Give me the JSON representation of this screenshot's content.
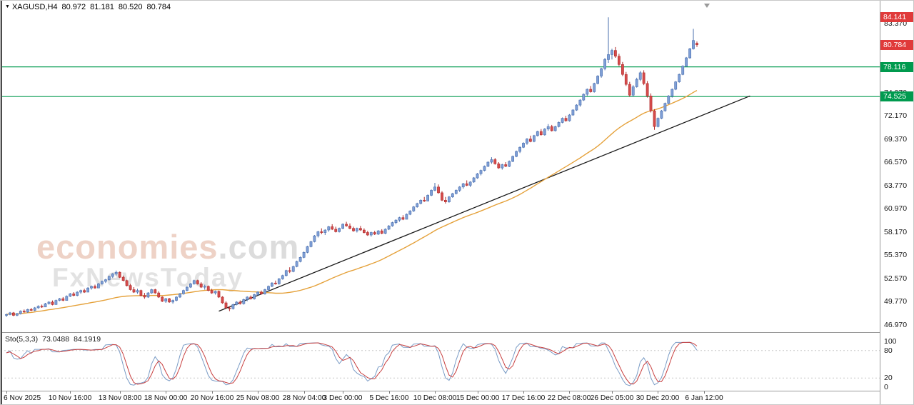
{
  "header": {
    "symbol": "XAGUSD,H4",
    "open": "80.972",
    "high": "81.181",
    "low": "80.520",
    "close": "80.784"
  },
  "watermark": {
    "brand": "economies",
    "brand_suffix": ".com",
    "tagline": "FxNewsToday"
  },
  "colors": {
    "candle_up": "#7f9fd6",
    "candle_up_border": "#4a6fae",
    "candle_down": "#d64c4c",
    "candle_down_border": "#b02c2c",
    "ma_line": "#e5a23c",
    "trendline": "#1a1a1a",
    "level_green": "#009a4e",
    "badge_red": "#e03a3a",
    "badge_green": "#009a4e",
    "stoch_main": "#7a9cc6",
    "stoch_signal": "#c84040",
    "watermark_brand": "#eed2c6",
    "watermark_gray": "#dcdcdc",
    "watermark_tagline": "#e2e2e2"
  },
  "price_axis": {
    "ticks": [
      {
        "label": "83.370",
        "price": 83.37
      },
      {
        "label": "80.570",
        "price": 80.57
      },
      {
        "label": "77.770",
        "price": 77.77
      },
      {
        "label": "74.970",
        "price": 74.97
      },
      {
        "label": "72.170",
        "price": 72.17
      },
      {
        "label": "69.370",
        "price": 69.37
      },
      {
        "label": "66.570",
        "price": 66.57
      },
      {
        "label": "63.770",
        "price": 63.77
      },
      {
        "label": "60.970",
        "price": 60.97
      },
      {
        "label": "58.170",
        "price": 58.17
      },
      {
        "label": "55.370",
        "price": 55.37
      },
      {
        "label": "52.570",
        "price": 52.57
      },
      {
        "label": "49.770",
        "price": 49.77
      },
      {
        "label": "46.970",
        "price": 46.97
      }
    ],
    "badges": [
      {
        "label": "84.141",
        "price": 84.141,
        "kind": "red"
      },
      {
        "label": "80.784",
        "price": 80.784,
        "kind": "red"
      },
      {
        "label": "78.116",
        "price": 78.116,
        "kind": "green"
      },
      {
        "label": "74.525",
        "price": 74.525,
        "kind": "green"
      }
    ]
  },
  "time_axis": {
    "labels": [
      {
        "text": "6 Nov 2025",
        "i": 0
      },
      {
        "text": "10 Nov 16:00",
        "i": 18
      },
      {
        "text": "13 Nov 08:00",
        "i": 32
      },
      {
        "text": "18 Nov 00:00",
        "i": 45
      },
      {
        "text": "20 Nov 16:00",
        "i": 58
      },
      {
        "text": "25 Nov 08:00",
        "i": 71
      },
      {
        "text": "28 Nov 04:00",
        "i": 84
      },
      {
        "text": "3 Dec 00:00",
        "i": 95
      },
      {
        "text": "5 Dec 16:00",
        "i": 108
      },
      {
        "text": "10 Dec 08:00",
        "i": 121
      },
      {
        "text": "15 Dec 00:00",
        "i": 133
      },
      {
        "text": "17 Dec 16:00",
        "i": 146
      },
      {
        "text": "22 Dec 08:00",
        "i": 159
      },
      {
        "text": "26 Dec 05:00",
        "i": 171
      },
      {
        "text": "30 Dec 20:00",
        "i": 184
      },
      {
        "text": "6 Jan 12:00",
        "i": 197
      }
    ]
  },
  "indicator": {
    "name": "Sto(5,3,3)",
    "value1": "73.0488",
    "value2": "84.1919",
    "levels": [
      100,
      80,
      20,
      0
    ],
    "dashed_levels": [
      80,
      20
    ]
  },
  "chart_data": {
    "type": "candlestick",
    "symbol": "XAGUSD",
    "timeframe": "H4",
    "ohlc_header": {
      "open": 80.972,
      "high": 81.181,
      "low": 80.52,
      "close": 80.784
    },
    "y_range": [
      46.67,
      84.55
    ],
    "levels": [
      78.116,
      74.525
    ],
    "trendline": {
      "i1": 60,
      "p1": 48.6,
      "i2": 210,
      "p2": 74.6
    },
    "ma": {
      "period": 45
    },
    "stochastic": {
      "k": 5,
      "smooth": 3,
      "d": 3
    },
    "candles": [
      [
        48.1,
        48.3,
        47.9,
        48.2
      ],
      [
        48.2,
        48.5,
        48.1,
        48.4
      ],
      [
        48.4,
        48.5,
        48.0,
        48.1
      ],
      [
        48.1,
        48.4,
        48.0,
        48.3
      ],
      [
        48.3,
        48.7,
        48.2,
        48.6
      ],
      [
        48.6,
        48.8,
        48.4,
        48.5
      ],
      [
        48.5,
        48.9,
        48.4,
        48.8
      ],
      [
        48.8,
        49.0,
        48.6,
        48.7
      ],
      [
        48.7,
        49.1,
        48.6,
        49.0
      ],
      [
        49.0,
        49.3,
        48.9,
        49.2
      ],
      [
        49.2,
        49.4,
        49.0,
        49.1
      ],
      [
        49.1,
        49.6,
        49.1,
        49.5
      ],
      [
        49.5,
        49.8,
        49.4,
        49.7
      ],
      [
        49.7,
        49.9,
        49.3,
        49.4
      ],
      [
        49.4,
        50.0,
        49.4,
        49.9
      ],
      [
        49.9,
        50.2,
        49.8,
        50.1
      ],
      [
        50.1,
        50.3,
        49.8,
        49.9
      ],
      [
        49.9,
        50.5,
        49.9,
        50.4
      ],
      [
        50.4,
        50.8,
        50.3,
        50.7
      ],
      [
        50.7,
        50.9,
        50.4,
        50.5
      ],
      [
        50.5,
        51.0,
        50.4,
        50.9
      ],
      [
        50.9,
        51.2,
        50.7,
        51.1
      ],
      [
        51.1,
        51.3,
        50.8,
        50.9
      ],
      [
        50.9,
        51.5,
        50.9,
        51.4
      ],
      [
        51.4,
        51.7,
        51.2,
        51.6
      ],
      [
        51.6,
        51.8,
        51.3,
        51.4
      ],
      [
        51.4,
        52.0,
        51.4,
        51.9
      ],
      [
        51.9,
        52.3,
        51.8,
        52.2
      ],
      [
        52.2,
        52.5,
        52.0,
        52.4
      ],
      [
        52.4,
        52.9,
        52.3,
        52.8
      ],
      [
        52.8,
        53.2,
        52.6,
        53.1
      ],
      [
        53.1,
        53.5,
        52.9,
        53.3
      ],
      [
        53.3,
        53.4,
        52.6,
        52.7
      ],
      [
        52.7,
        52.9,
        52.2,
        52.3
      ],
      [
        52.3,
        52.4,
        51.6,
        51.7
      ],
      [
        51.7,
        51.9,
        51.1,
        51.2
      ],
      [
        51.2,
        51.5,
        50.8,
        50.9
      ],
      [
        50.9,
        51.3,
        50.7,
        51.1
      ],
      [
        51.1,
        51.2,
        50.4,
        50.5
      ],
      [
        50.5,
        50.8,
        50.1,
        50.3
      ],
      [
        50.3,
        50.9,
        50.2,
        50.8
      ],
      [
        50.8,
        51.3,
        50.7,
        51.2
      ],
      [
        51.2,
        51.3,
        50.7,
        50.8
      ],
      [
        50.8,
        51.0,
        50.2,
        50.3
      ],
      [
        50.3,
        50.4,
        49.7,
        49.8
      ],
      [
        49.8,
        50.2,
        49.6,
        50.1
      ],
      [
        50.1,
        50.2,
        49.6,
        49.7
      ],
      [
        49.7,
        50.0,
        49.5,
        49.9
      ],
      [
        49.9,
        50.4,
        49.8,
        50.3
      ],
      [
        50.3,
        50.8,
        50.2,
        50.7
      ],
      [
        50.7,
        51.2,
        50.6,
        51.1
      ],
      [
        51.1,
        51.6,
        51.0,
        51.5
      ],
      [
        51.5,
        52.0,
        51.4,
        51.9
      ],
      [
        51.9,
        52.4,
        51.8,
        52.3
      ],
      [
        52.3,
        52.4,
        51.8,
        51.9
      ],
      [
        51.9,
        52.1,
        51.4,
        51.5
      ],
      [
        51.5,
        51.8,
        51.2,
        51.6
      ],
      [
        51.6,
        51.7,
        51.0,
        51.1
      ],
      [
        51.1,
        51.3,
        50.7,
        50.8
      ],
      [
        50.8,
        51.1,
        50.6,
        51.0
      ],
      [
        51.0,
        51.1,
        50.2,
        50.3
      ],
      [
        50.3,
        50.4,
        49.5,
        49.6
      ],
      [
        49.6,
        49.8,
        48.9,
        49.0
      ],
      [
        49.0,
        49.2,
        48.6,
        48.9
      ],
      [
        48.9,
        49.5,
        48.8,
        49.4
      ],
      [
        49.4,
        49.8,
        49.3,
        49.7
      ],
      [
        49.7,
        49.9,
        49.4,
        49.5
      ],
      [
        49.5,
        50.1,
        49.4,
        50.0
      ],
      [
        50.0,
        50.4,
        49.8,
        50.3
      ],
      [
        50.3,
        50.5,
        50.0,
        50.1
      ],
      [
        50.1,
        50.7,
        50.0,
        50.6
      ],
      [
        50.6,
        51.0,
        50.5,
        50.9
      ],
      [
        50.9,
        51.1,
        50.6,
        50.7
      ],
      [
        50.7,
        51.3,
        50.6,
        51.2
      ],
      [
        51.2,
        51.7,
        51.1,
        51.6
      ],
      [
        51.6,
        52.1,
        51.5,
        52.0
      ],
      [
        52.0,
        52.3,
        51.8,
        51.9
      ],
      [
        51.9,
        52.6,
        51.8,
        52.5
      ],
      [
        52.5,
        53.0,
        52.4,
        52.9
      ],
      [
        52.9,
        53.6,
        52.8,
        53.5
      ],
      [
        53.5,
        53.9,
        53.2,
        53.4
      ],
      [
        53.4,
        54.1,
        53.3,
        54.0
      ],
      [
        54.0,
        54.7,
        53.9,
        54.6
      ],
      [
        54.6,
        55.2,
        54.5,
        55.1
      ],
      [
        55.1,
        55.8,
        55.0,
        55.7
      ],
      [
        55.7,
        56.5,
        55.6,
        56.4
      ],
      [
        56.4,
        57.1,
        56.3,
        57.0
      ],
      [
        57.0,
        57.8,
        56.9,
        57.7
      ],
      [
        57.7,
        58.3,
        57.5,
        58.2
      ],
      [
        58.2,
        58.6,
        57.9,
        58.1
      ],
      [
        58.1,
        58.5,
        57.8,
        58.4
      ],
      [
        58.4,
        58.9,
        58.2,
        58.8
      ],
      [
        58.8,
        59.1,
        58.4,
        58.5
      ],
      [
        58.5,
        58.8,
        58.1,
        58.2
      ],
      [
        58.2,
        58.7,
        58.1,
        58.6
      ],
      [
        58.6,
        59.2,
        58.5,
        59.1
      ],
      [
        59.1,
        59.4,
        58.8,
        58.9
      ],
      [
        58.9,
        59.2,
        58.5,
        58.6
      ],
      [
        58.6,
        58.8,
        58.2,
        58.3
      ],
      [
        58.3,
        58.7,
        58.1,
        58.6
      ],
      [
        58.6,
        58.9,
        58.3,
        58.4
      ],
      [
        58.4,
        58.6,
        58.0,
        58.1
      ],
      [
        58.1,
        58.3,
        57.7,
        57.8
      ],
      [
        57.8,
        58.2,
        57.6,
        58.1
      ],
      [
        58.1,
        58.3,
        57.8,
        57.9
      ],
      [
        57.9,
        58.4,
        57.8,
        58.3
      ],
      [
        58.3,
        58.5,
        57.9,
        58.0
      ],
      [
        58.0,
        58.6,
        57.9,
        58.5
      ],
      [
        58.5,
        59.0,
        58.4,
        58.9
      ],
      [
        58.9,
        59.4,
        58.8,
        59.3
      ],
      [
        59.3,
        59.7,
        59.1,
        59.6
      ],
      [
        59.6,
        60.0,
        59.4,
        59.9
      ],
      [
        59.9,
        60.2,
        59.6,
        59.7
      ],
      [
        59.7,
        60.4,
        59.7,
        60.3
      ],
      [
        60.3,
        60.8,
        60.2,
        60.7
      ],
      [
        60.7,
        61.3,
        60.6,
        61.2
      ],
      [
        61.2,
        61.7,
        61.1,
        61.6
      ],
      [
        61.6,
        62.1,
        61.5,
        62.0
      ],
      [
        62.0,
        62.4,
        61.8,
        61.9
      ],
      [
        61.9,
        62.7,
        61.9,
        62.6
      ],
      [
        62.6,
        63.3,
        62.5,
        63.2
      ],
      [
        63.2,
        64.1,
        63.1,
        63.6
      ],
      [
        63.6,
        63.9,
        62.8,
        62.9
      ],
      [
        62.9,
        63.1,
        61.9,
        62.0
      ],
      [
        62.0,
        62.4,
        61.6,
        61.8
      ],
      [
        61.8,
        62.5,
        61.7,
        62.4
      ],
      [
        62.4,
        62.9,
        62.3,
        62.8
      ],
      [
        62.8,
        63.3,
        62.7,
        63.2
      ],
      [
        63.2,
        63.7,
        63.0,
        63.6
      ],
      [
        63.6,
        64.1,
        63.4,
        64.0
      ],
      [
        64.0,
        64.4,
        63.7,
        63.8
      ],
      [
        63.8,
        64.3,
        63.6,
        64.2
      ],
      [
        64.2,
        64.8,
        64.1,
        64.7
      ],
      [
        64.7,
        65.3,
        64.6,
        65.2
      ],
      [
        65.2,
        65.7,
        65.0,
        65.6
      ],
      [
        65.6,
        66.2,
        65.5,
        66.1
      ],
      [
        66.1,
        66.7,
        66.0,
        66.6
      ],
      [
        66.6,
        67.2,
        66.4,
        66.9
      ],
      [
        66.9,
        67.1,
        66.3,
        66.4
      ],
      [
        66.4,
        66.6,
        65.8,
        65.9
      ],
      [
        65.9,
        66.4,
        65.7,
        66.3
      ],
      [
        66.3,
        66.6,
        66.0,
        66.1
      ],
      [
        66.1,
        66.8,
        66.0,
        66.7
      ],
      [
        66.7,
        67.4,
        66.6,
        67.3
      ],
      [
        67.3,
        68.0,
        67.2,
        67.9
      ],
      [
        67.9,
        68.5,
        67.7,
        68.4
      ],
      [
        68.4,
        69.0,
        68.3,
        68.9
      ],
      [
        68.9,
        69.5,
        68.7,
        69.4
      ],
      [
        69.4,
        69.8,
        69.0,
        69.1
      ],
      [
        69.1,
        69.9,
        69.0,
        69.8
      ],
      [
        69.8,
        70.4,
        69.7,
        70.3
      ],
      [
        70.3,
        70.6,
        69.8,
        69.9
      ],
      [
        69.9,
        70.7,
        69.8,
        70.6
      ],
      [
        70.6,
        71.2,
        70.4,
        70.9
      ],
      [
        70.9,
        71.1,
        70.3,
        70.4
      ],
      [
        70.4,
        71.0,
        70.3,
        70.9
      ],
      [
        70.9,
        71.5,
        70.8,
        71.4
      ],
      [
        71.4,
        72.0,
        71.3,
        71.9
      ],
      [
        71.9,
        72.2,
        71.5,
        71.6
      ],
      [
        71.6,
        72.4,
        71.5,
        72.3
      ],
      [
        72.3,
        73.0,
        72.2,
        72.9
      ],
      [
        72.9,
        73.6,
        72.8,
        73.5
      ],
      [
        73.5,
        74.2,
        73.3,
        74.1
      ],
      [
        74.1,
        74.9,
        74.0,
        74.8
      ],
      [
        74.8,
        75.5,
        74.6,
        75.4
      ],
      [
        75.4,
        75.8,
        75.0,
        75.1
      ],
      [
        75.1,
        76.2,
        75.0,
        76.1
      ],
      [
        76.1,
        77.1,
        76.0,
        77.0
      ],
      [
        77.0,
        78.0,
        76.8,
        77.9
      ],
      [
        77.9,
        79.2,
        77.7,
        79.0
      ],
      [
        79.0,
        84.1,
        78.6,
        79.6
      ],
      [
        79.6,
        80.3,
        79.0,
        80.1
      ],
      [
        80.1,
        80.5,
        79.2,
        79.4
      ],
      [
        79.4,
        79.7,
        78.2,
        78.4
      ],
      [
        78.4,
        78.7,
        77.0,
        77.2
      ],
      [
        77.2,
        77.5,
        75.8,
        76.0
      ],
      [
        76.0,
        76.3,
        74.5,
        74.7
      ],
      [
        74.7,
        75.9,
        74.5,
        75.7
      ],
      [
        75.7,
        76.8,
        75.6,
        76.6
      ],
      [
        76.6,
        77.6,
        76.4,
        77.4
      ],
      [
        77.4,
        77.7,
        75.9,
        76.1
      ],
      [
        76.1,
        76.4,
        74.4,
        74.6
      ],
      [
        74.6,
        74.9,
        72.6,
        72.8
      ],
      [
        72.8,
        73.0,
        70.5,
        70.9
      ],
      [
        70.9,
        72.0,
        70.8,
        71.9
      ],
      [
        71.9,
        72.9,
        71.8,
        72.8
      ],
      [
        72.8,
        73.8,
        72.7,
        73.7
      ],
      [
        73.7,
        74.7,
        73.6,
        74.6
      ],
      [
        74.6,
        75.5,
        74.4,
        75.4
      ],
      [
        75.4,
        76.4,
        75.3,
        76.3
      ],
      [
        76.3,
        77.3,
        76.2,
        77.2
      ],
      [
        77.2,
        78.3,
        77.1,
        78.2
      ],
      [
        78.2,
        79.3,
        78.1,
        79.2
      ],
      [
        79.2,
        80.4,
        79.1,
        80.3
      ],
      [
        80.3,
        82.7,
        80.2,
        81.3
      ],
      [
        80.97,
        81.18,
        80.52,
        80.78
      ]
    ]
  }
}
